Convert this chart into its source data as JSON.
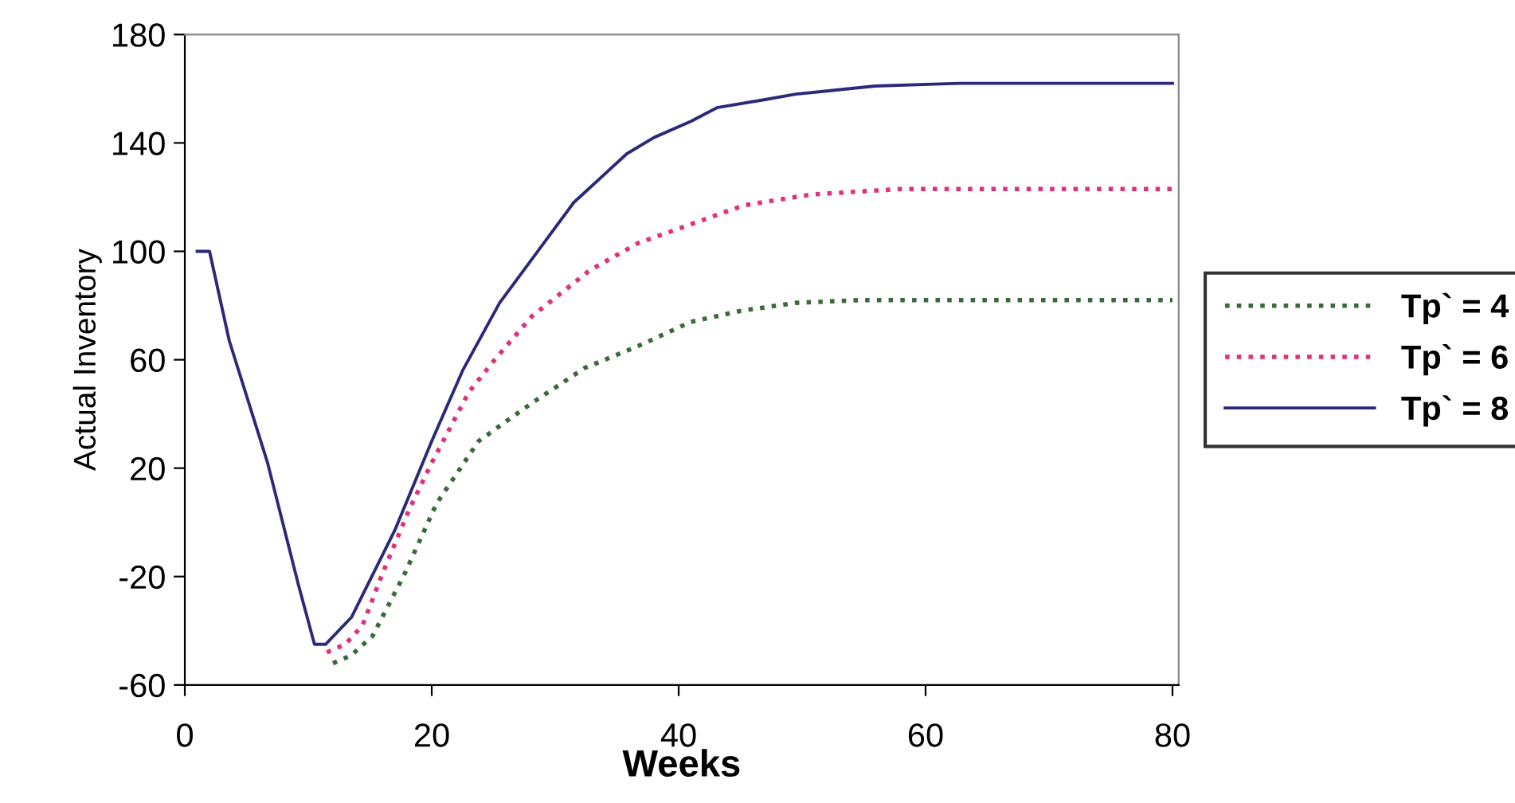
{
  "chart_data": {
    "type": "line",
    "xlabel": "Weeks",
    "ylabel": "Actual Inventory",
    "xlim": [
      0,
      80.5
    ],
    "ylim": [
      -60,
      180
    ],
    "xticks": [
      0,
      20,
      40,
      60,
      80
    ],
    "yticks": [
      -60,
      -20,
      20,
      60,
      100,
      140,
      180
    ],
    "grid": false,
    "legend": "right",
    "marker": "none",
    "series": [
      {
        "name": "Tp` = 4",
        "color": "#3a6a3a",
        "line_style": "dotted",
        "x": [
          12,
          13.5,
          15.2,
          17.8,
          20.4,
          23.8,
          28.1,
          32.4,
          36.7,
          41,
          45,
          49.5,
          54.7,
          60,
          70,
          80
        ],
        "values": [
          -52,
          -49,
          -42,
          -19,
          7,
          30,
          44,
          57,
          65,
          74,
          78,
          81,
          82,
          82,
          82,
          82
        ]
      },
      {
        "name": "Tp` = 6",
        "color": "#e0307a",
        "line_style": "dotted",
        "x": [
          11.5,
          13,
          14.4,
          16,
          18.2,
          20,
          23,
          25.1,
          28.1,
          32.8,
          36.7,
          41,
          45.3,
          50.8,
          58,
          70,
          80
        ],
        "values": [
          -48,
          -45,
          -38,
          -19,
          5,
          22,
          48,
          60,
          76,
          93,
          103,
          110,
          117,
          121,
          123,
          123,
          123
        ]
      },
      {
        "name": "Tp` = 8",
        "color": "#2b2a7a",
        "line_style": "solid",
        "x": [
          1,
          2,
          3.6,
          6.7,
          9.2,
          10.5,
          11.4,
          13.5,
          17,
          20,
          22.5,
          25.5,
          28.1,
          31.5,
          35.8,
          38,
          41,
          43.1,
          47,
          49.5,
          55.9,
          62.7,
          70,
          80
        ],
        "values": [
          100,
          100,
          67,
          22,
          -23,
          -45,
          -45,
          -35,
          -3,
          30,
          56,
          81,
          97,
          118,
          136,
          142,
          148,
          153,
          156,
          158,
          161,
          162,
          162,
          162
        ]
      }
    ]
  }
}
